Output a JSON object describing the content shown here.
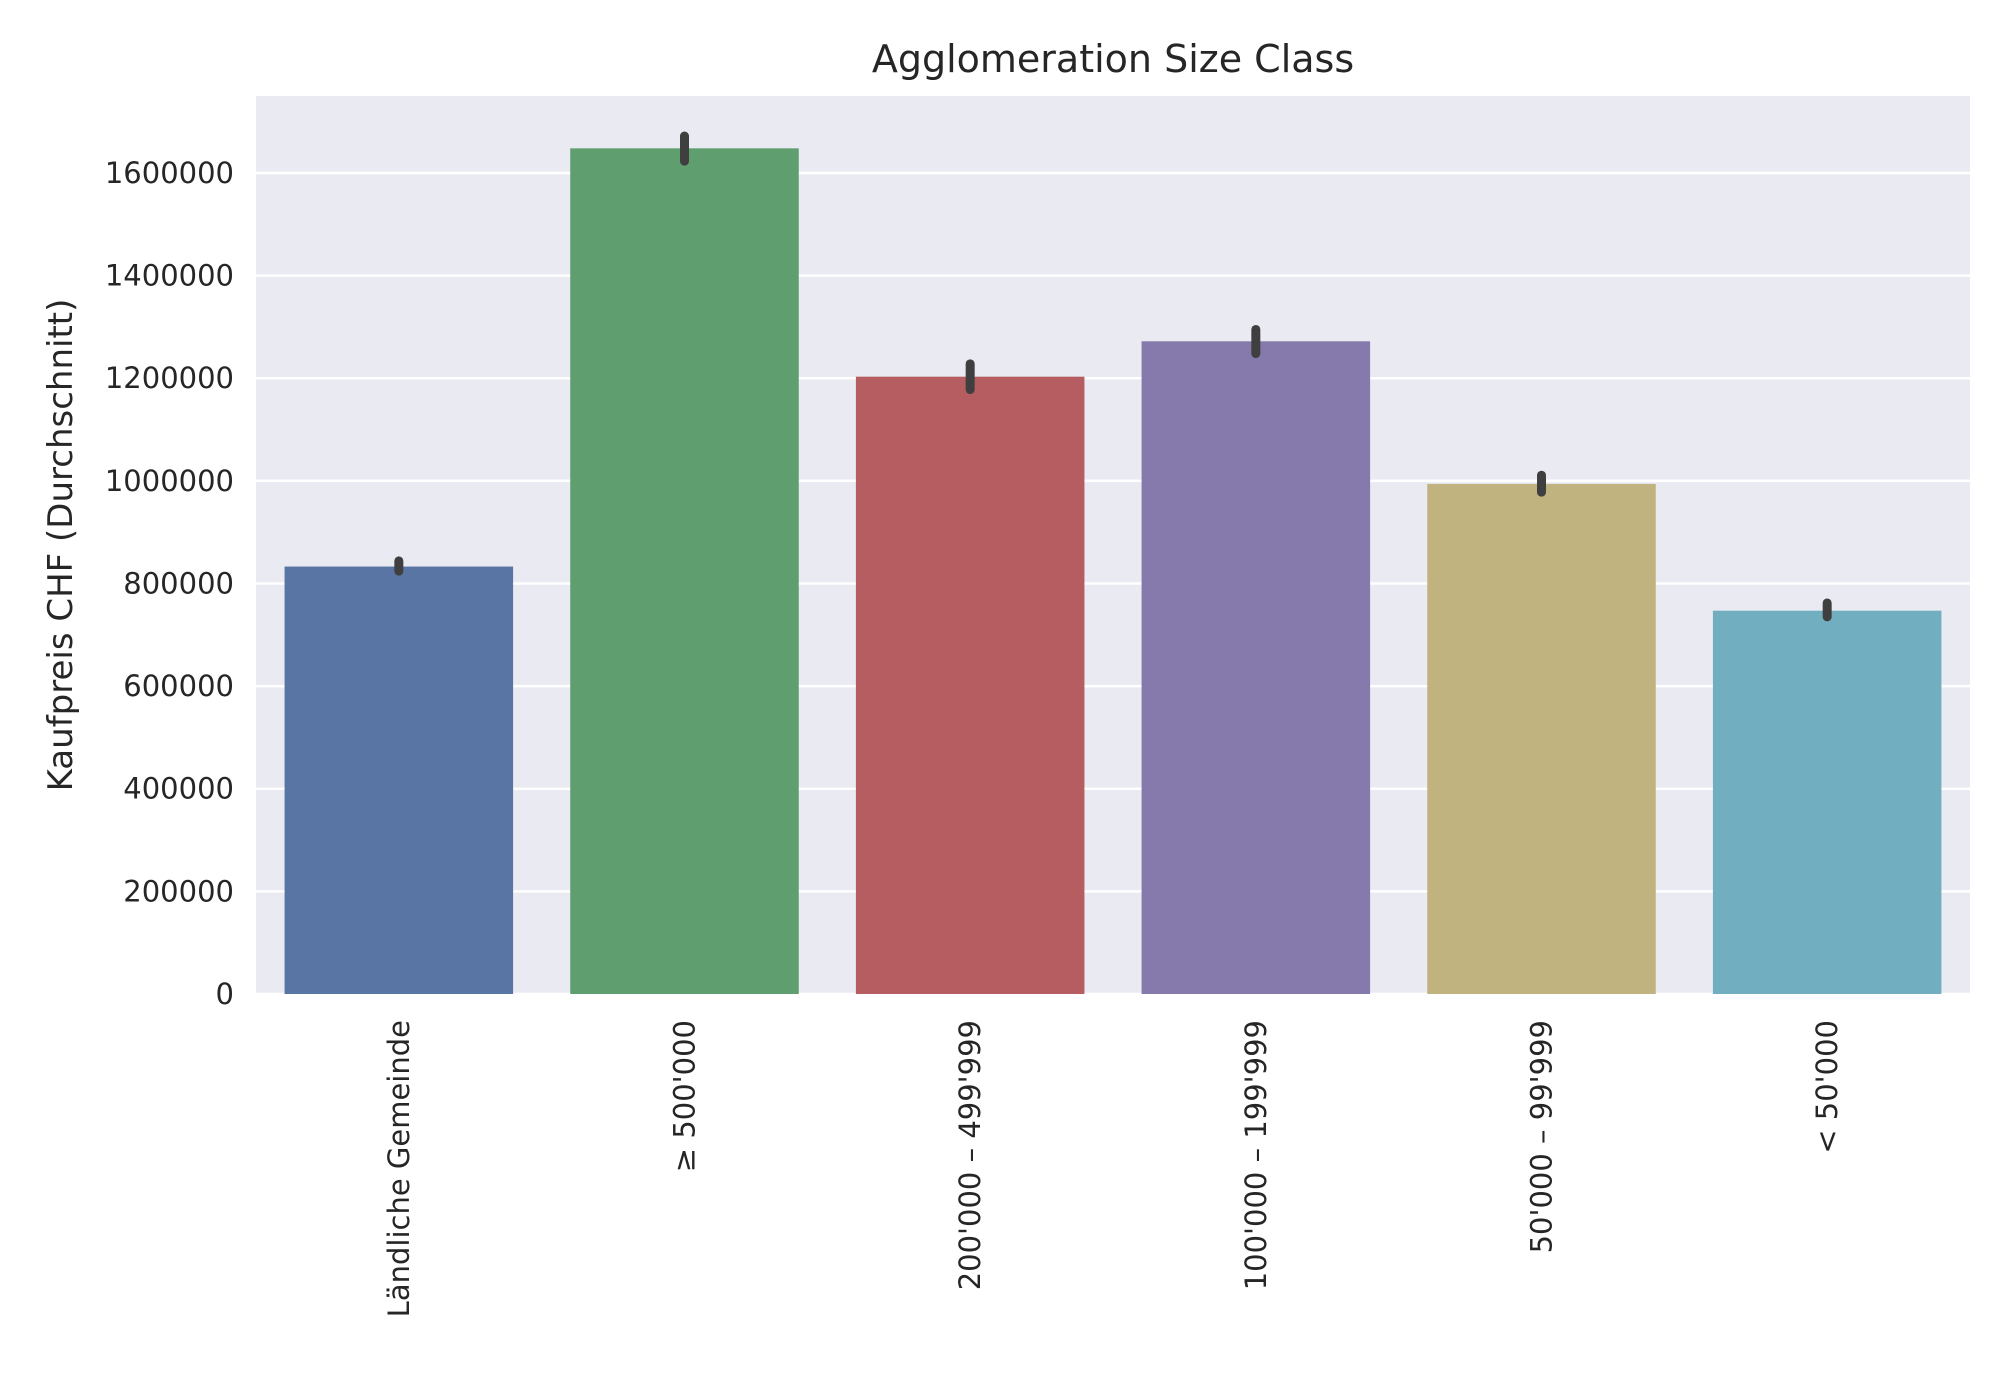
{
  "chart_data": {
    "type": "bar",
    "title": "Agglomeration Size Class",
    "xlabel": "",
    "ylabel": "Kaufpreis CHF (Durchschnitt)",
    "categories": [
      "Ländliche Gemeinde",
      "≥ 500'000",
      "200'000 – 499'999",
      "100'000 – 199'999",
      "50'000 – 99'999",
      "< 50'000"
    ],
    "values": [
      833000,
      1648000,
      1203000,
      1272000,
      994000,
      747000
    ],
    "error_low": [
      824000,
      1623000,
      1178000,
      1248000,
      978000,
      735000
    ],
    "error_high": [
      844000,
      1672000,
      1228000,
      1295000,
      1011000,
      762000
    ],
    "colors": [
      "#5975a4",
      "#5f9e6e",
      "#b55d60",
      "#857aab",
      "#c1b37f",
      "#71aec0"
    ],
    "ylim": [
      0,
      1750000
    ],
    "yticks": [
      0,
      200000,
      400000,
      600000,
      800000,
      1000000,
      1200000,
      1400000,
      1600000
    ],
    "ytick_labels": [
      "0",
      "200000",
      "400000",
      "600000",
      "800000",
      "1000000",
      "1200000",
      "1400000",
      "1600000"
    ],
    "grid": true,
    "background": "#eaeaf2"
  }
}
